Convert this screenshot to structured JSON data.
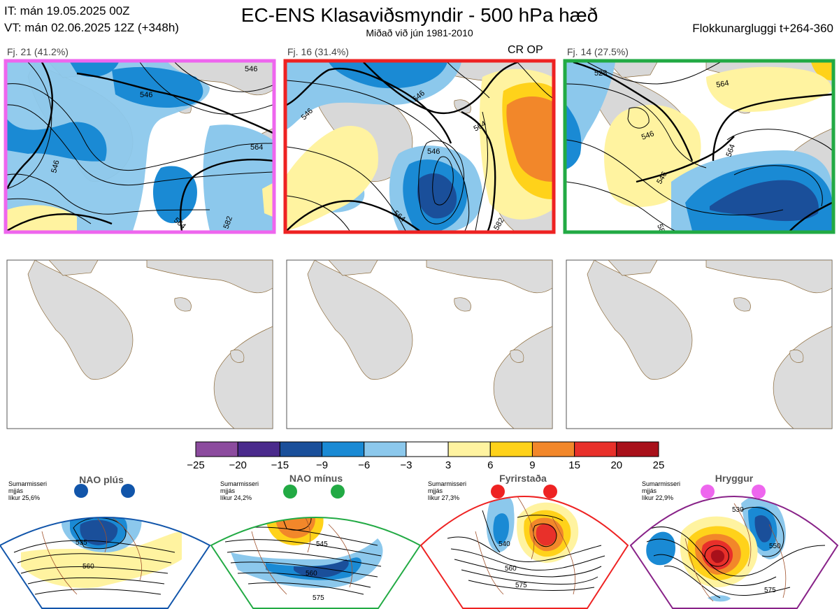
{
  "header": {
    "it_line": "IT: mán 19.05.2025 00Z",
    "vt_line": "VT: mán 02.06.2025 12Z  (+348h)",
    "title": "EC-ENS Klasaviðsmyndir - 500 hPa hæð",
    "subtitle": "Miðað við jún 1981-2010",
    "window": "Flokkunargluggi t+264-360"
  },
  "clusters": [
    {
      "label": "Fj. 21 (41.2%)",
      "border_color": "#ee66ee",
      "contour_labels": [
        "546",
        "546",
        "546",
        "564",
        "564",
        "582"
      ]
    },
    {
      "label": "Fj. 16 (31.4%)",
      "border_color": "#ee2222",
      "tag": "CR OP",
      "contour_labels": [
        "546",
        "546",
        "546",
        "564",
        "564",
        "582"
      ]
    },
    {
      "label": "Fj. 14 (27.5%)",
      "border_color": "#22aa44",
      "contour_labels": [
        "528",
        "546",
        "546",
        "564",
        "564",
        "582"
      ]
    }
  ],
  "colorbar": {
    "ticks": [
      "−25",
      "−20",
      "−15",
      "−9",
      "−6",
      "−3",
      "3",
      "6",
      "9",
      "15",
      "20",
      "25"
    ],
    "colors": [
      "#8c4b9e",
      "#4a2a8c",
      "#1a4f9a",
      "#1a8ad4",
      "#8cc8ec",
      "#ffffff",
      "#fff3a0",
      "#ffd21a",
      "#f2872a",
      "#e8302a",
      "#a8101a"
    ]
  },
  "regimes": [
    {
      "name": "NAO plús",
      "season": "Sumarmisseri",
      "smoothing": "mjjás",
      "probability": "líkur 25,6%",
      "dot_color": "#1155aa",
      "frame_color": "#1155aa",
      "contour_labels": [
        "535",
        "560"
      ]
    },
    {
      "name": "NAO mínus",
      "season": "Sumarmisseri",
      "smoothing": "mjjás",
      "probability": "líkur 24,2%",
      "dot_color": "#22aa44",
      "frame_color": "#22aa44",
      "contour_labels": [
        "545",
        "560",
        "575"
      ]
    },
    {
      "name": "Fyrirstaða",
      "season": "Sumarmisseri",
      "smoothing": "mjjás",
      "probability": "líkur 27,3%",
      "dot_color": "#ee2222",
      "frame_color": "#ee2222",
      "contour_labels": [
        "540",
        "560",
        "575"
      ]
    },
    {
      "name": "Hryggur",
      "season": "Sumarmisseri",
      "smoothing": "mjjás",
      "probability": "líkur 22,9%",
      "dot_color": "#ee66ee",
      "frame_color": "#882288",
      "contour_labels": [
        "530",
        "550",
        "575"
      ]
    }
  ],
  "chart_data": {
    "type": "heatmap",
    "variable": "500 hPa hæð",
    "contour_values": [
      528,
      546,
      564,
      582
    ],
    "colorbar_range": [
      -25,
      25
    ],
    "clusters": [
      {
        "name": "Fj. 21",
        "members": 21,
        "percent": 41.2
      },
      {
        "name": "Fj. 16",
        "members": 16,
        "percent": 31.4
      },
      {
        "name": "Fj. 14",
        "members": 14,
        "percent": 27.5
      }
    ],
    "regime_probabilities": [
      {
        "name": "NAO plús",
        "percent": 25.6
      },
      {
        "name": "NAO mínus",
        "percent": 24.2
      },
      {
        "name": "Fyrirstaða",
        "percent": 27.3
      },
      {
        "name": "Hryggur",
        "percent": 22.9
      }
    ]
  }
}
